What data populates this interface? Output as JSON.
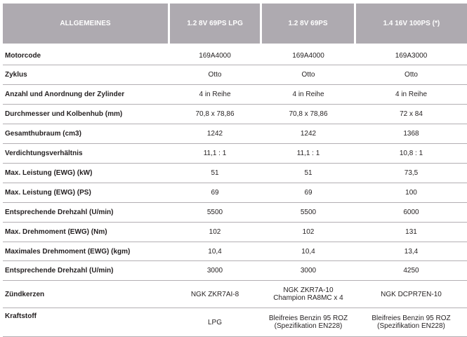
{
  "header": [
    "ALLGEMEINES",
    "1.2 8V 69PS LPG",
    "1.2 8V 69PS",
    "1.4 16V 100PS (*)"
  ],
  "rows": [
    {
      "label": "Motorcode",
      "values": [
        "169A4000",
        "169A4000",
        "169A3000"
      ]
    },
    {
      "label": "Zyklus",
      "values": [
        "Otto",
        "Otto",
        "Otto"
      ]
    },
    {
      "label": "Anzahl und Anordnung der Zylinder",
      "values": [
        "4 in Reihe",
        "4 in Reihe",
        "4 in Reihe"
      ]
    },
    {
      "label": "Durchmesser und Kolbenhub (mm)",
      "values": [
        "70,8 x 78,86",
        "70,8 x 78,86",
        "72 x 84"
      ]
    },
    {
      "label": "Gesamthubraum (cm3)",
      "values": [
        "1242",
        "1242",
        "1368"
      ]
    },
    {
      "label": "Verdichtungsverhältnis",
      "values": [
        "11,1 : 1",
        "11,1 : 1",
        "10,8 : 1"
      ]
    },
    {
      "label": "Max. Leistung (EWG) (kW)",
      "values": [
        "51",
        "51",
        "73,5"
      ]
    },
    {
      "label": "Max. Leistung (EWG) (PS)",
      "values": [
        "69",
        "69",
        "100"
      ]
    },
    {
      "label": "Entsprechende Drehzahl (U/min)",
      "values": [
        "5500",
        "5500",
        "6000"
      ]
    },
    {
      "label": "Max. Drehmoment (EWG) (Nm)",
      "values": [
        "102",
        "102",
        "131"
      ]
    },
    {
      "label": "Maximales Drehmoment (EWG) (kgm)",
      "values": [
        "10,4",
        "10,4",
        "13,4"
      ]
    },
    {
      "label": "Entsprechende Drehzahl (U/min)",
      "values": [
        "3000",
        "3000",
        "4250"
      ]
    },
    {
      "label": "Zündkerzen",
      "values": [
        "NGK ZKR7AI-8",
        "NGK ZKR7A-10\nChampion RA8MC x 4",
        "NGK DCPR7EN-10"
      ]
    },
    {
      "label": "Kraftstoff",
      "values": [
        "LPG",
        "Bleifreies Benzin 95 ROZ\n(Spezifikation EN228)",
        "Bleifreies Benzin 95 ROZ\n(Spezifikation EN228)"
      ]
    }
  ]
}
